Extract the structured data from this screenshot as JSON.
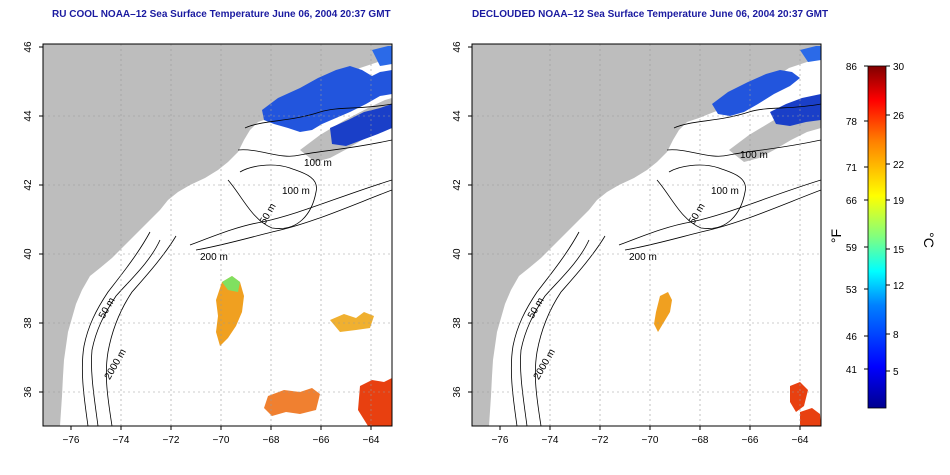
{
  "left_panel": {
    "title": "RU COOL NOAA–12 Sea Surface Temperature June 06, 2004 20:37 GMT",
    "contour_labels": [
      "100 m",
      "100 m",
      "50 m",
      "200 m",
      "50 m",
      "2000 m"
    ]
  },
  "right_panel": {
    "title": "DECLOUDED NOAA–12 Sea Surface Temperature June 06, 2004 20:37 GMT",
    "contour_labels": [
      "100 m",
      "100 m",
      "50 m",
      "200 m",
      "50 m",
      "2000 m"
    ]
  },
  "axes": {
    "lon_ticks": [
      "−76",
      "−74",
      "−72",
      "−70",
      "−68",
      "−66",
      "−64"
    ],
    "lat_ticks": [
      "46",
      "44",
      "42",
      "40",
      "38",
      "36"
    ]
  },
  "colorbar": {
    "f_label": "°F",
    "c_label": "°C",
    "f_ticks": [
      "86",
      "78",
      "71",
      "66",
      "59",
      "53",
      "46",
      "41"
    ],
    "c_ticks": [
      "30",
      "26",
      "22",
      "19",
      "15",
      "12",
      "8",
      "5"
    ],
    "range_c": [
      2,
      30
    ]
  },
  "colors": {
    "land": "#bdbdbd",
    "ocean": "#ffffff",
    "title": "#1a1aa0",
    "cold": "#2040e0",
    "warm": "#e06010"
  }
}
